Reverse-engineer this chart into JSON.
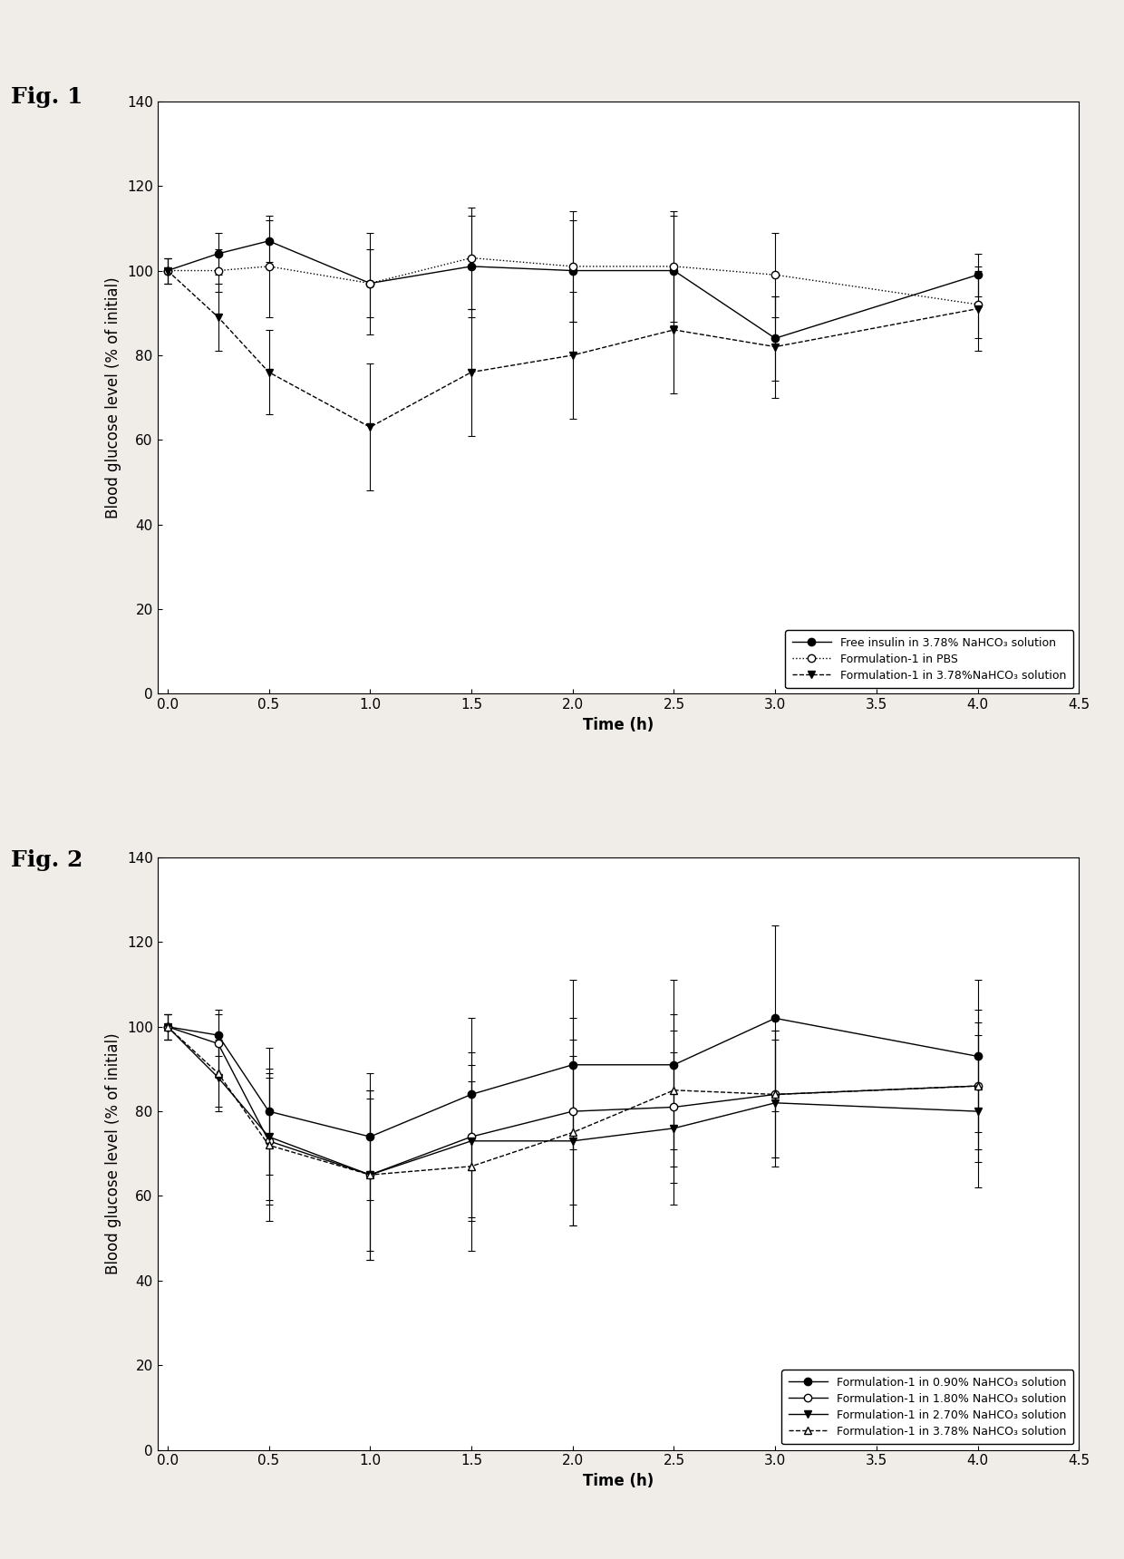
{
  "fig1": {
    "xlabel": "Time (h)",
    "ylabel": "Blood glucose level (% of initial)",
    "xlim": [
      -0.05,
      4.5
    ],
    "ylim": [
      0,
      140
    ],
    "xticks": [
      0.0,
      0.5,
      1.0,
      1.5,
      2.0,
      2.5,
      3.0,
      3.5,
      4.0,
      4.5
    ],
    "yticks": [
      0,
      20,
      40,
      60,
      80,
      100,
      120,
      140
    ],
    "fig_label": "Fig. 1",
    "series": [
      {
        "label": "Free insulin in 3.78% NaHCO₃ solution",
        "x": [
          0.0,
          0.25,
          0.5,
          1.0,
          1.5,
          2.0,
          2.5,
          3.0,
          4.0
        ],
        "y": [
          100,
          104,
          107,
          97,
          101,
          100,
          100,
          84,
          99
        ],
        "yerr": [
          3,
          5,
          5,
          8,
          12,
          12,
          13,
          10,
          5
        ],
        "marker": "o",
        "markerfacecolor": "black",
        "markeredgecolor": "black",
        "linestyle": "-",
        "color": "black",
        "markersize": 6
      },
      {
        "label": "Formulation-1 in PBS",
        "x": [
          0.0,
          0.25,
          0.5,
          1.0,
          1.5,
          2.0,
          2.5,
          3.0,
          4.0
        ],
        "y": [
          100,
          100,
          101,
          97,
          103,
          101,
          101,
          99,
          92
        ],
        "yerr": [
          3,
          5,
          12,
          12,
          12,
          13,
          13,
          10,
          8
        ],
        "marker": "o",
        "markerfacecolor": "white",
        "markeredgecolor": "black",
        "linestyle": ":",
        "color": "black",
        "markersize": 6
      },
      {
        "label": "Formulation-1 in 3.78%NaHCO₃ solution",
        "x": [
          0.0,
          0.25,
          0.5,
          1.0,
          1.5,
          2.0,
          2.5,
          3.0,
          4.0
        ],
        "y": [
          100,
          89,
          76,
          63,
          76,
          80,
          86,
          82,
          91
        ],
        "yerr": [
          3,
          8,
          10,
          15,
          15,
          15,
          15,
          12,
          10
        ],
        "marker": "v",
        "markerfacecolor": "black",
        "markeredgecolor": "black",
        "linestyle": "--",
        "color": "black",
        "markersize": 6
      }
    ]
  },
  "fig2": {
    "xlabel": "Time (h)",
    "ylabel": "Blood glucose level (% of initial)",
    "xlim": [
      -0.05,
      4.5
    ],
    "ylim": [
      0,
      140
    ],
    "xticks": [
      0.0,
      0.5,
      1.0,
      1.5,
      2.0,
      2.5,
      3.0,
      3.5,
      4.0,
      4.5
    ],
    "yticks": [
      0,
      20,
      40,
      60,
      80,
      100,
      120,
      140
    ],
    "fig_label": "Fig. 2",
    "series": [
      {
        "label": "Formulation-1 in 0.90% NaHCO₃ solution",
        "x": [
          0.0,
          0.25,
          0.5,
          1.0,
          1.5,
          2.0,
          2.5,
          3.0,
          4.0
        ],
        "y": [
          100,
          98,
          80,
          74,
          84,
          91,
          91,
          102,
          93
        ],
        "yerr": [
          3,
          5,
          15,
          15,
          18,
          20,
          20,
          22,
          18
        ],
        "marker": "o",
        "markerfacecolor": "black",
        "markeredgecolor": "black",
        "linestyle": "-",
        "color": "black",
        "markersize": 6
      },
      {
        "label": "Formulation-1 in 1.80% NaHCO₃ solution",
        "x": [
          0.0,
          0.25,
          0.5,
          1.0,
          1.5,
          2.0,
          2.5,
          3.0,
          4.0
        ],
        "y": [
          100,
          96,
          73,
          65,
          74,
          80,
          81,
          84,
          86
        ],
        "yerr": [
          3,
          8,
          15,
          20,
          20,
          22,
          18,
          15,
          15
        ],
        "marker": "o",
        "markerfacecolor": "white",
        "markeredgecolor": "black",
        "linestyle": "-",
        "color": "black",
        "markersize": 6
      },
      {
        "label": "Formulation-1 in 2.70% NaHCO₃ solution",
        "x": [
          0.0,
          0.25,
          0.5,
          1.0,
          1.5,
          2.0,
          2.5,
          3.0,
          4.0
        ],
        "y": [
          100,
          88,
          74,
          65,
          73,
          73,
          76,
          82,
          80
        ],
        "yerr": [
          3,
          8,
          15,
          18,
          18,
          20,
          18,
          15,
          18
        ],
        "marker": "v",
        "markerfacecolor": "black",
        "markeredgecolor": "black",
        "linestyle": "-",
        "color": "black",
        "markersize": 6
      },
      {
        "label": "Formulation-1 in 3.78% NaHCO₃ solution",
        "x": [
          0.0,
          0.25,
          0.5,
          1.0,
          1.5,
          2.0,
          2.5,
          3.0,
          4.0
        ],
        "y": [
          100,
          89,
          72,
          65,
          67,
          75,
          85,
          84,
          86
        ],
        "yerr": [
          3,
          8,
          18,
          20,
          20,
          22,
          18,
          15,
          18
        ],
        "marker": "^",
        "markerfacecolor": "white",
        "markeredgecolor": "black",
        "linestyle": "--",
        "color": "black",
        "markersize": 6
      }
    ]
  },
  "background_color": "#f0ede8",
  "fig_label_fontsize": 18,
  "axis_label_fontsize": 12,
  "tick_fontsize": 11,
  "legend_fontsize": 9
}
